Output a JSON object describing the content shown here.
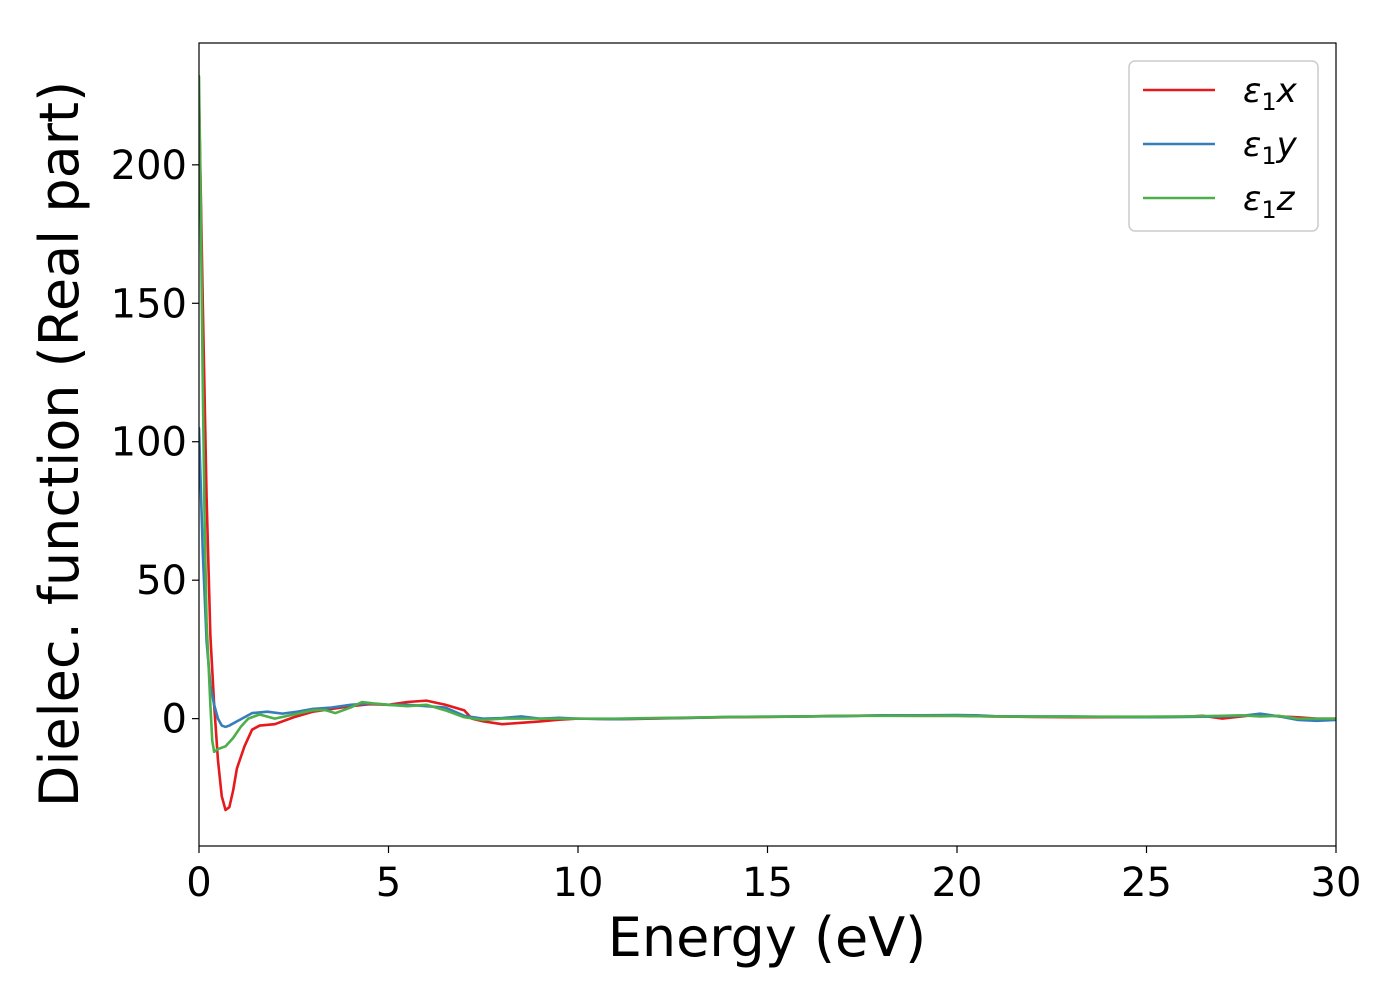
{
  "chart_data": {
    "type": "line",
    "title": "",
    "xlabel": "Energy (eV)",
    "ylabel": "Dielec. function (Real part)",
    "xlim": [
      0,
      30
    ],
    "ylim": [
      -46,
      244
    ],
    "xticks": [
      0,
      5,
      10,
      15,
      20,
      25,
      30
    ],
    "yticks": [
      0,
      50,
      100,
      150,
      200
    ],
    "grid": false,
    "legend": "top-right",
    "colors": {
      "x": "#e41a1c",
      "y": "#377eb8",
      "z": "#4daf4a"
    },
    "series": [
      {
        "key": "x",
        "name": "ε₁x",
        "legend_base": "ε",
        "legend_sub": "1",
        "legend_axis": "x",
        "color": "#e41a1c",
        "points": [
          [
            0.0,
            225
          ],
          [
            0.1,
            150
          ],
          [
            0.2,
            80
          ],
          [
            0.3,
            30
          ],
          [
            0.4,
            5
          ],
          [
            0.5,
            -15
          ],
          [
            0.6,
            -28
          ],
          [
            0.7,
            -33
          ],
          [
            0.8,
            -32
          ],
          [
            0.9,
            -26
          ],
          [
            1.0,
            -18
          ],
          [
            1.2,
            -10
          ],
          [
            1.4,
            -4
          ],
          [
            1.6,
            -2.5
          ],
          [
            2.0,
            -2
          ],
          [
            2.5,
            0.5
          ],
          [
            3.0,
            2.5
          ],
          [
            3.5,
            3.5
          ],
          [
            4.0,
            4.5
          ],
          [
            4.5,
            5.2
          ],
          [
            5.0,
            5.0
          ],
          [
            5.5,
            6.0
          ],
          [
            6.0,
            6.5
          ],
          [
            6.5,
            5.0
          ],
          [
            7.0,
            3.0
          ],
          [
            7.2,
            0
          ],
          [
            7.5,
            -1.0
          ],
          [
            8.0,
            -2.0
          ],
          [
            8.5,
            -1.5
          ],
          [
            9.0,
            -1.0
          ],
          [
            9.5,
            -0.4
          ],
          [
            10,
            0
          ],
          [
            11,
            -0.2
          ],
          [
            12,
            0
          ],
          [
            13,
            0.3
          ],
          [
            14,
            0.5
          ],
          [
            15,
            0.6
          ],
          [
            16,
            0.8
          ],
          [
            17,
            1.0
          ],
          [
            18,
            1.1
          ],
          [
            19,
            1.0
          ],
          [
            20,
            1.0
          ],
          [
            21,
            0.8
          ],
          [
            22,
            0.6
          ],
          [
            23,
            0.5
          ],
          [
            24,
            0.5
          ],
          [
            25,
            0.5
          ],
          [
            26,
            0.7
          ],
          [
            26.5,
            1.0
          ],
          [
            27,
            0
          ],
          [
            27.5,
            0.8
          ],
          [
            28,
            1.5
          ],
          [
            28.5,
            0.8
          ],
          [
            29,
            0.5
          ],
          [
            29.5,
            0
          ],
          [
            30,
            0
          ]
        ]
      },
      {
        "key": "y",
        "name": "ε₁y",
        "legend_base": "ε",
        "legend_sub": "1",
        "legend_axis": "y",
        "color": "#377eb8",
        "points": [
          [
            0.0,
            105
          ],
          [
            0.1,
            60
          ],
          [
            0.2,
            28
          ],
          [
            0.3,
            12
          ],
          [
            0.4,
            5
          ],
          [
            0.5,
            0
          ],
          [
            0.6,
            -2.5
          ],
          [
            0.7,
            -3
          ],
          [
            0.8,
            -2.5
          ],
          [
            1.0,
            -1
          ],
          [
            1.2,
            0.5
          ],
          [
            1.4,
            2
          ],
          [
            1.8,
            2.5
          ],
          [
            2.2,
            1.8
          ],
          [
            2.6,
            2.5
          ],
          [
            3.0,
            3.5
          ],
          [
            3.5,
            4.0
          ],
          [
            4.0,
            5.0
          ],
          [
            4.5,
            5.5
          ],
          [
            5.0,
            5.0
          ],
          [
            5.5,
            5.0
          ],
          [
            6.0,
            4.5
          ],
          [
            6.5,
            4.0
          ],
          [
            7.0,
            1.0
          ],
          [
            7.5,
            0
          ],
          [
            8.0,
            0.2
          ],
          [
            8.5,
            0.8
          ],
          [
            9.0,
            0
          ],
          [
            9.5,
            0.3
          ],
          [
            10,
            0
          ],
          [
            11,
            -0.2
          ],
          [
            12,
            0.1
          ],
          [
            13,
            0.3
          ],
          [
            14,
            0.6
          ],
          [
            15,
            0.7
          ],
          [
            16,
            0.8
          ],
          [
            17,
            0.9
          ],
          [
            18,
            1.2
          ],
          [
            19,
            1.2
          ],
          [
            20,
            1.3
          ],
          [
            20.5,
            1.2
          ],
          [
            21,
            0.9
          ],
          [
            22,
            0.8
          ],
          [
            23,
            0.8
          ],
          [
            24,
            0.6
          ],
          [
            25,
            0.5
          ],
          [
            26,
            0.6
          ],
          [
            27,
            0.8
          ],
          [
            27.5,
            1.0
          ],
          [
            28,
            1.8
          ],
          [
            28.5,
            0.8
          ],
          [
            29,
            -0.5
          ],
          [
            29.5,
            -0.8
          ],
          [
            30,
            -0.5
          ]
        ]
      },
      {
        "key": "z",
        "name": "ε₁z",
        "legend_base": "ε",
        "legend_sub": "1",
        "legend_axis": "z",
        "color": "#4daf4a",
        "points": [
          [
            0.0,
            232
          ],
          [
            0.05,
            180
          ],
          [
            0.1,
            120
          ],
          [
            0.15,
            70
          ],
          [
            0.2,
            35
          ],
          [
            0.3,
            5
          ],
          [
            0.35,
            -8
          ],
          [
            0.4,
            -12
          ],
          [
            0.5,
            -11
          ],
          [
            0.7,
            -10
          ],
          [
            0.9,
            -7
          ],
          [
            1.1,
            -3
          ],
          [
            1.3,
            0
          ],
          [
            1.6,
            1.5
          ],
          [
            2.0,
            0
          ],
          [
            2.5,
            1.5
          ],
          [
            3.0,
            3.0
          ],
          [
            3.3,
            3.2
          ],
          [
            3.6,
            2.0
          ],
          [
            4.0,
            4.0
          ],
          [
            4.3,
            6.0
          ],
          [
            4.6,
            5.5
          ],
          [
            5.0,
            5.0
          ],
          [
            5.5,
            4.5
          ],
          [
            6.0,
            5.0
          ],
          [
            6.5,
            3.0
          ],
          [
            7.0,
            0.5
          ],
          [
            7.5,
            -0.5
          ],
          [
            8.0,
            0
          ],
          [
            8.5,
            0
          ],
          [
            9,
            0
          ],
          [
            9.5,
            0
          ],
          [
            10,
            0
          ],
          [
            11,
            0
          ],
          [
            12,
            0.2
          ],
          [
            13,
            0.4
          ],
          [
            14,
            0.6
          ],
          [
            15,
            0.7
          ],
          [
            16,
            0.8
          ],
          [
            17,
            1.0
          ],
          [
            18,
            1.0
          ],
          [
            19,
            1.0
          ],
          [
            20,
            1.0
          ],
          [
            21,
            0.8
          ],
          [
            22,
            0.7
          ],
          [
            23,
            0.7
          ],
          [
            24,
            0.7
          ],
          [
            25,
            0.7
          ],
          [
            26,
            0.8
          ],
          [
            27,
            1.0
          ],
          [
            27.5,
            1.2
          ],
          [
            28,
            0.8
          ],
          [
            28.5,
            1.0
          ],
          [
            29,
            0
          ],
          [
            29.5,
            0
          ],
          [
            30,
            0
          ]
        ]
      }
    ]
  }
}
